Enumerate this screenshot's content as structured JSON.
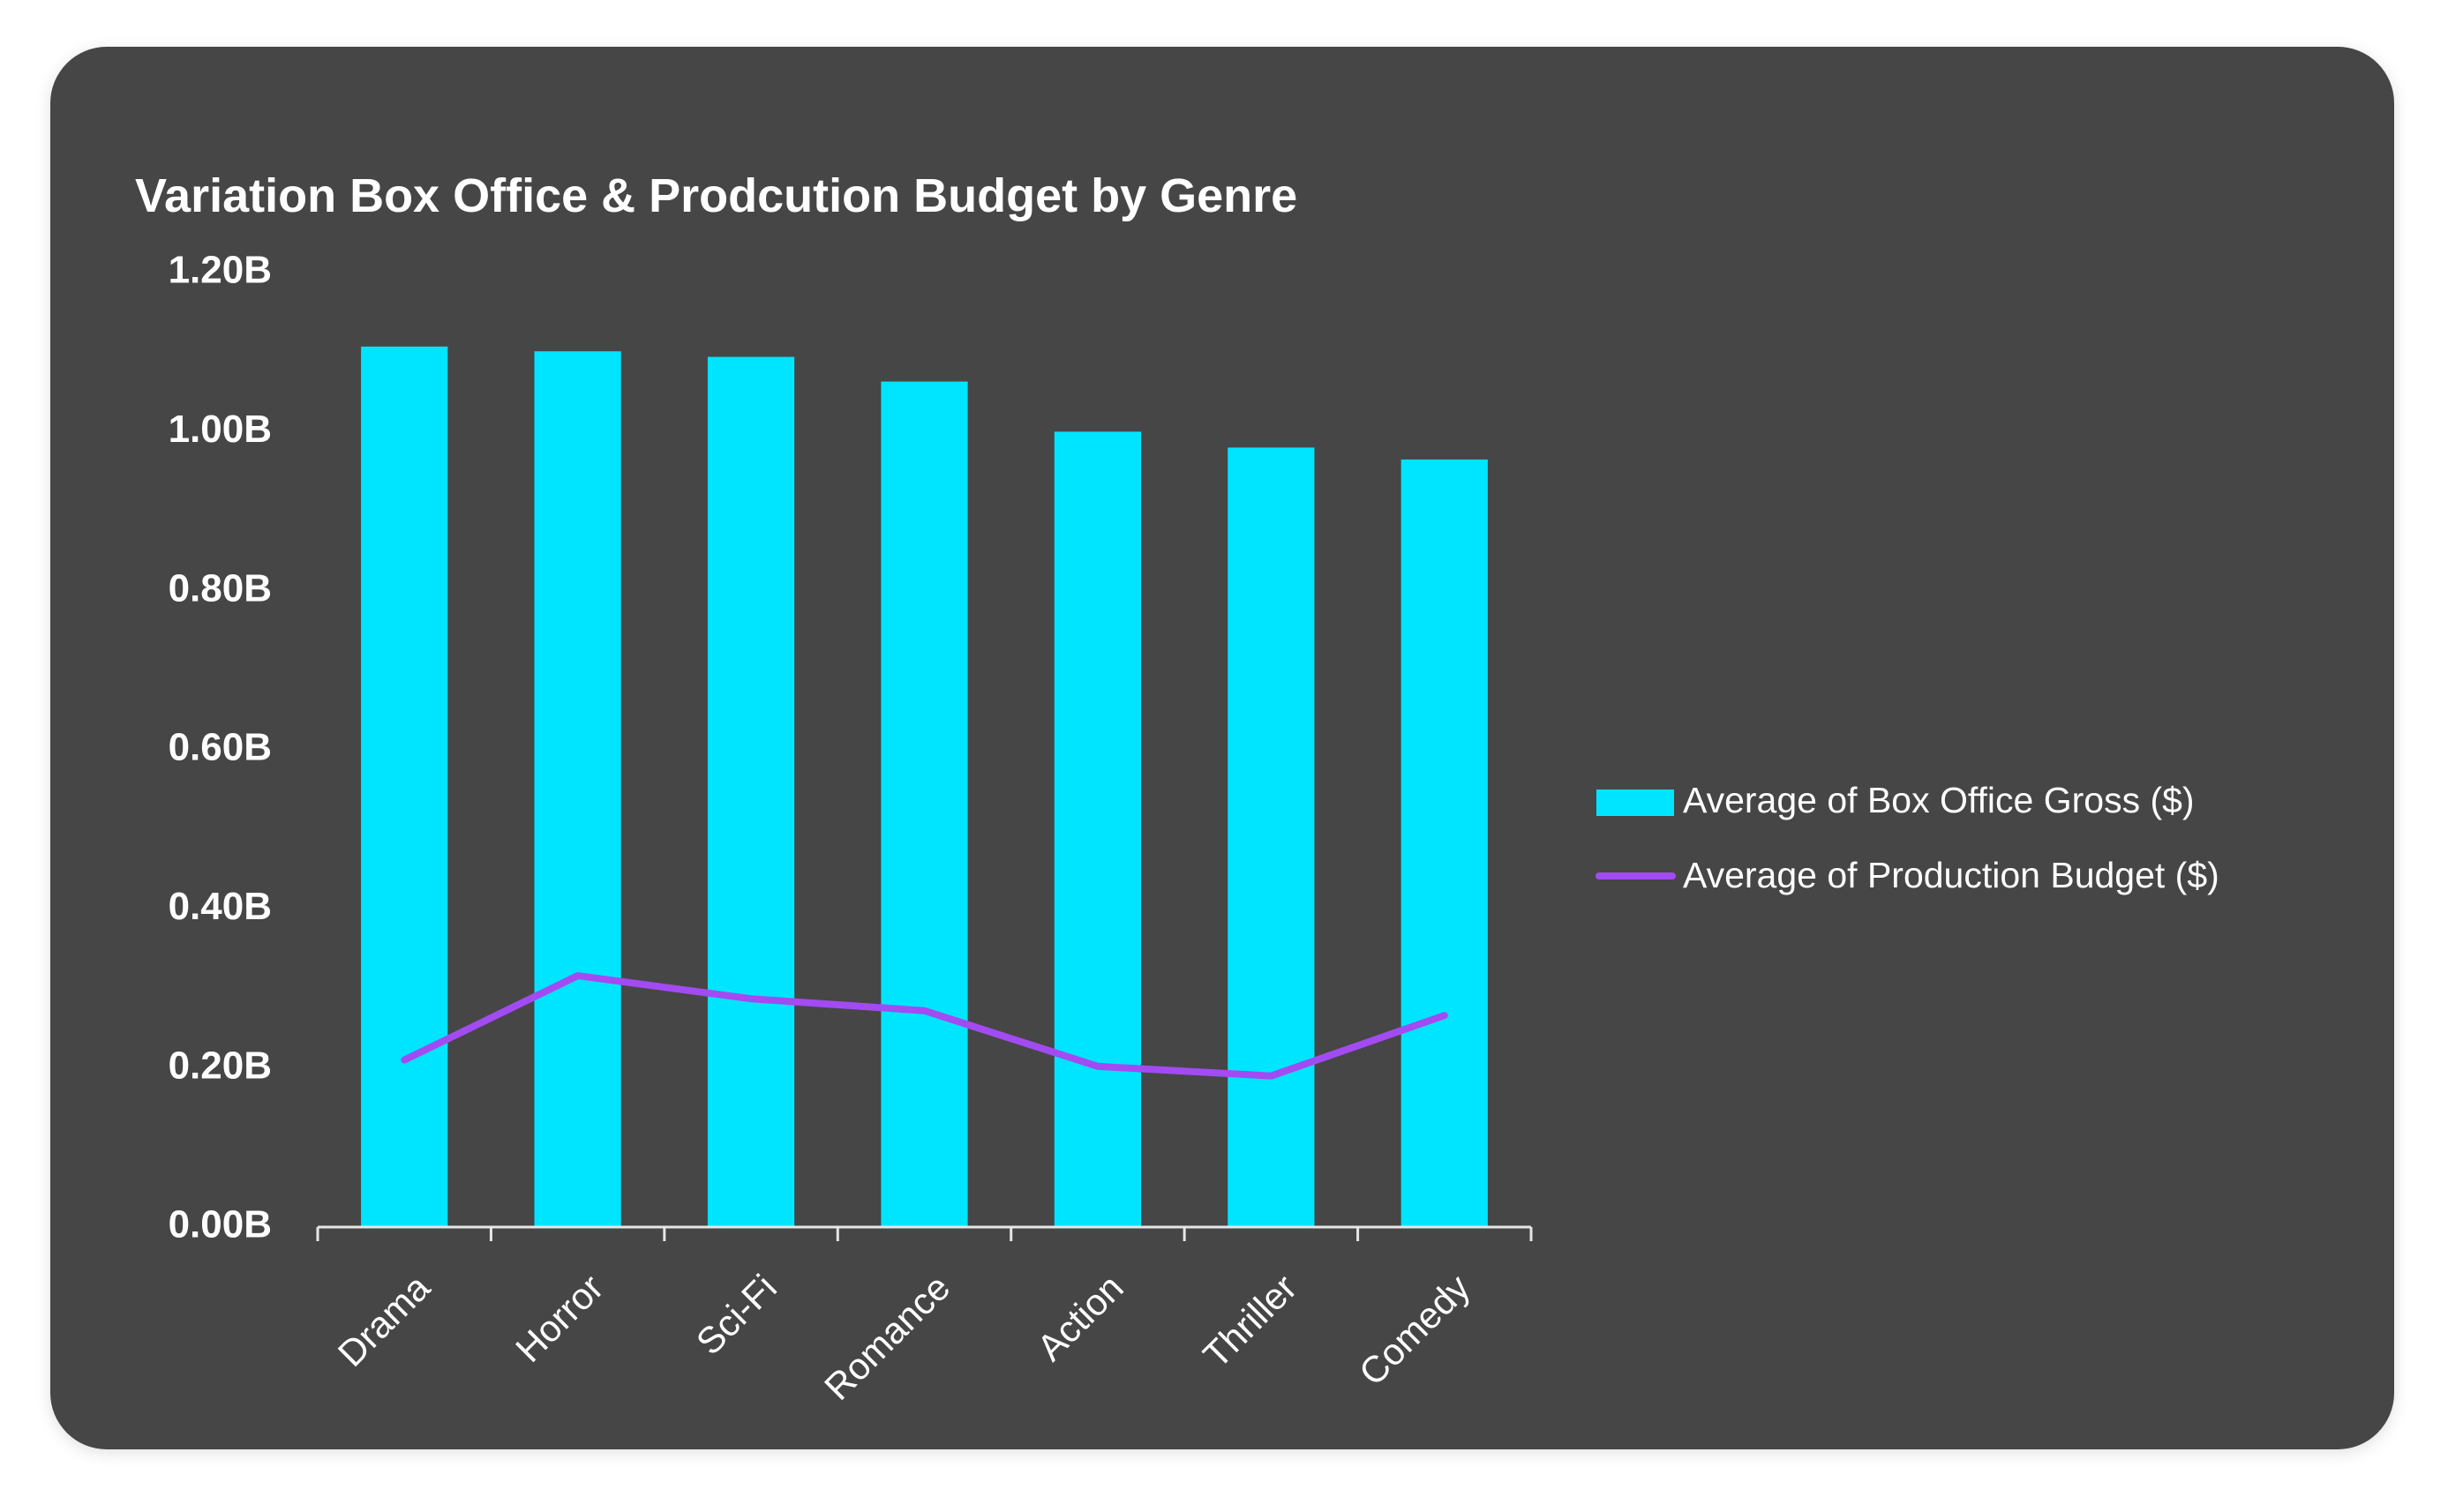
{
  "chart_data": {
    "type": "bar",
    "title": "Variation Box Office & Prodcution Budget by Genre",
    "categories": [
      "Drama",
      "Horror",
      "Sci-Fi",
      "Romance",
      "Action",
      "Thriller",
      "Comedy"
    ],
    "series": [
      {
        "name": "Average of Box Office Gross ($)",
        "type": "bar",
        "color": "#00E5FF",
        "values": [
          1107000000,
          1101000000,
          1094000000,
          1063000000,
          1000000000,
          980000000,
          965000000
        ]
      },
      {
        "name": "Average of Production Budget ($)",
        "type": "line",
        "color": "#A24BF2",
        "values": [
          210000000,
          316000000,
          287000000,
          272000000,
          202000000,
          190000000,
          266000000
        ]
      }
    ],
    "ylim": [
      0,
      1200000000
    ],
    "yticks": [
      "0.00B",
      "0.20B",
      "0.40B",
      "0.60B",
      "0.80B",
      "1.00B",
      "1.20B"
    ],
    "xlabel": "",
    "ylabel": "",
    "grid": false,
    "legend_position": "right",
    "background": "#464646",
    "text_color": "#FFFFFF"
  }
}
